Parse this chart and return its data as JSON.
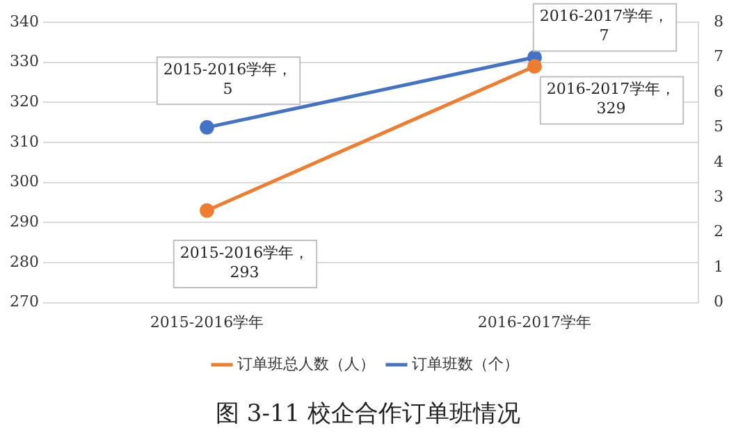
{
  "chart_data": {
    "type": "line",
    "title": "图 3-11 校企合作订单班情况",
    "categories": [
      "2015-2016学年",
      "2016-2017学年"
    ],
    "series": [
      {
        "name": "订单班总人数（人）",
        "color": "#ed7d31",
        "values": [
          293,
          329
        ],
        "value_labels": [
          "2015-2016学年，\n293",
          "2016-2017学年，\n329"
        ]
      },
      {
        "name": "订单班数（个）",
        "color": "#4472c4",
        "values": [
          5,
          7
        ],
        "axis": "y2",
        "value_labels": [
          "2015-2016学年，\n5",
          "2016-2017学年，\n7"
        ]
      }
    ],
    "ylim": [
      270,
      340
    ],
    "yticks": [
      270,
      280,
      290,
      300,
      310,
      320,
      330,
      340
    ],
    "y2lim": [
      0,
      8
    ],
    "y2ticks": [
      0,
      1,
      2,
      3,
      4,
      5,
      6,
      7,
      8
    ],
    "grid": "y",
    "legend": "bottom",
    "marker": "circle",
    "line_style": "solid"
  }
}
